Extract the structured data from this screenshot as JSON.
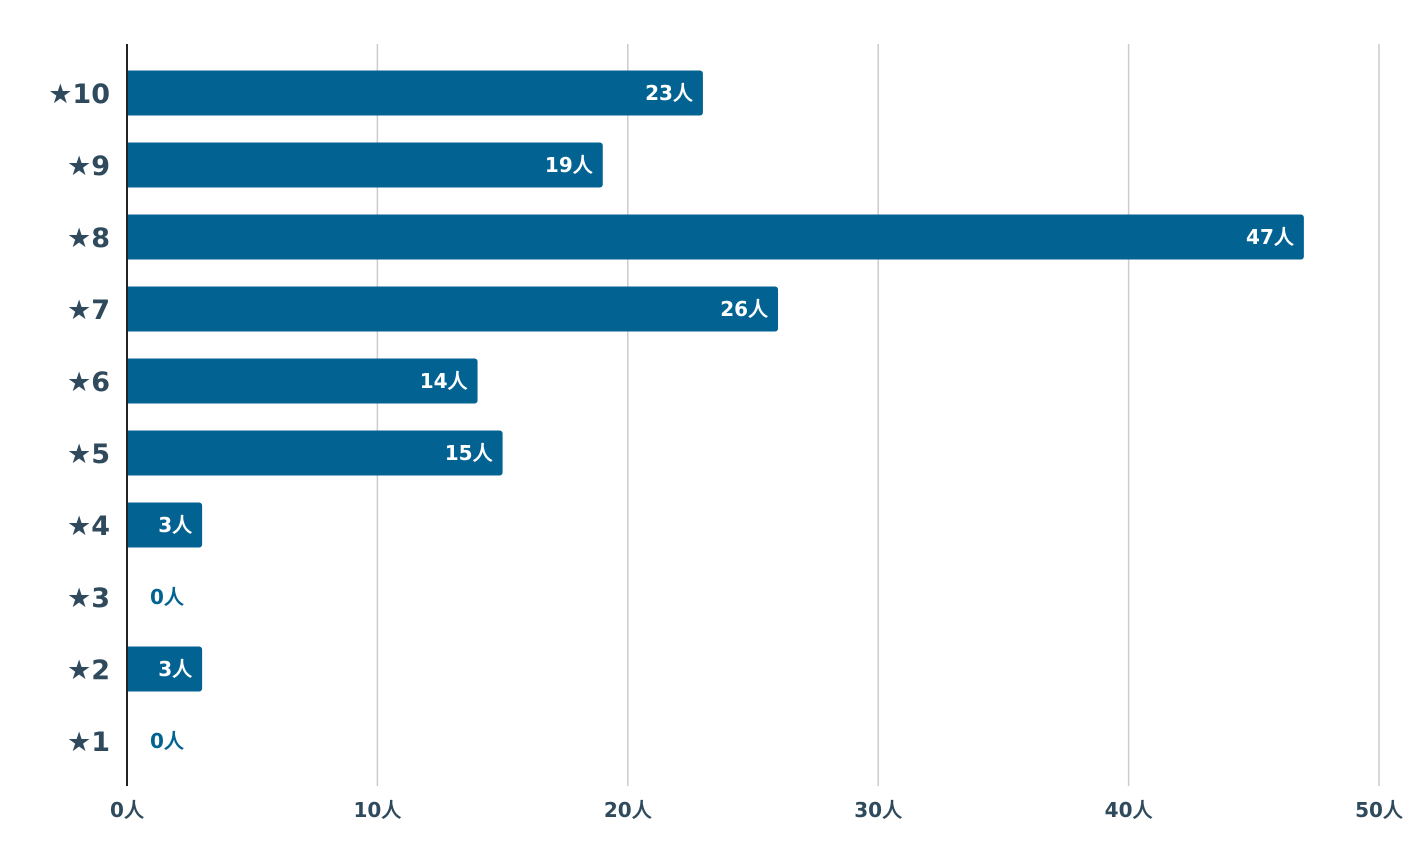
{
  "chart_data": {
    "type": "bar",
    "orientation": "horizontal",
    "categories": [
      "★10",
      "★9",
      "★8",
      "★7",
      "★6",
      "★5",
      "★4",
      "★3",
      "★2",
      "★1"
    ],
    "values": [
      23,
      19,
      47,
      26,
      14,
      15,
      3,
      0,
      3,
      0
    ],
    "value_labels": [
      "23人",
      "19人",
      "47人",
      "26人",
      "14人",
      "15人",
      "3人",
      "0人",
      "3人",
      "0人"
    ],
    "xlim": [
      0,
      50
    ],
    "x_ticks": [
      0,
      10,
      20,
      30,
      40,
      50
    ],
    "x_tick_labels": [
      "0人",
      "10人",
      "20人",
      "30人",
      "40人",
      "50人"
    ],
    "grid": "vertical",
    "legend": "none",
    "title": "",
    "xlabel": "",
    "ylabel": "",
    "colors": {
      "bar": "#026392",
      "grid": "#cccccc",
      "axis": "#222222",
      "category_text": "#2e4a5c",
      "tick_text": "#2e4a5c",
      "label_inside": "#ffffff",
      "label_outside": "#026392"
    }
  }
}
